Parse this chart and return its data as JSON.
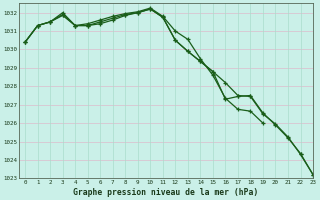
{
  "title": "Graphe pression niveau de la mer (hPa)",
  "bg_color": "#caf0e8",
  "grid_h_color": "#ddbbcc",
  "grid_v_color": "#aaddcc",
  "line_color": "#1a5e1a",
  "text_color": "#1a3a1a",
  "hours": [
    0,
    1,
    2,
    3,
    4,
    5,
    6,
    7,
    8,
    9,
    10,
    11,
    12,
    13,
    14,
    15,
    16,
    17,
    18,
    19,
    20,
    21,
    22,
    23
  ],
  "series1": [
    1030.4,
    1031.3,
    1031.5,
    1032.0,
    1031.3,
    1031.4,
    1031.6,
    1031.8,
    1031.95,
    1032.05,
    1032.25,
    1031.8,
    1031.0,
    1030.55,
    1029.5,
    1028.6,
    1027.35,
    1026.75,
    1026.65,
    1026.0,
    null,
    null,
    null,
    null
  ],
  "series2": [
    1030.4,
    1031.3,
    1031.5,
    1031.9,
    1031.3,
    1031.3,
    1031.5,
    1031.7,
    1031.9,
    1032.0,
    1032.2,
    1031.75,
    1030.5,
    1029.9,
    1029.35,
    1028.8,
    1027.3,
    1027.45,
    1027.5,
    1026.55,
    1025.9,
    1025.2,
    1024.35,
    1023.2
  ],
  "series3": [
    1030.4,
    1031.3,
    1031.5,
    1031.85,
    1031.3,
    1031.3,
    1031.4,
    1031.6,
    1031.85,
    1032.0,
    1032.2,
    1031.75,
    1030.5,
    1029.9,
    1029.35,
    1028.8,
    1028.2,
    1027.5,
    1027.45,
    1026.5,
    1025.95,
    1025.25,
    1024.3,
    1023.2
  ],
  "ylim": [
    1023,
    1032.5
  ],
  "yticks": [
    1023,
    1024,
    1025,
    1026,
    1027,
    1028,
    1029,
    1030,
    1031,
    1032
  ],
  "xlim": [
    -0.5,
    23
  ],
  "figsize": [
    3.2,
    2.0
  ],
  "dpi": 100
}
